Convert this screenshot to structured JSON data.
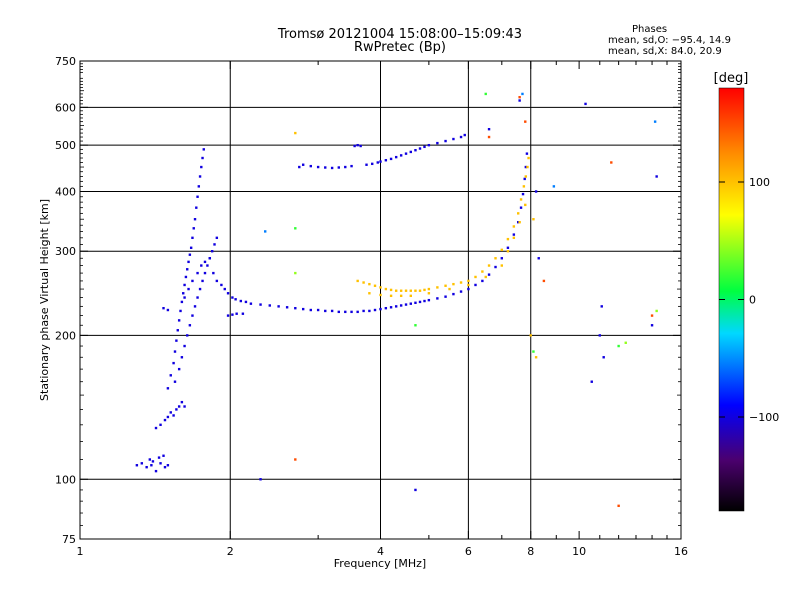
{
  "chart_data": {
    "type": "scatter",
    "title": "Tromsø 20121004 15:08:00–15:09:43",
    "subtitle": "RwPretec (Bp)",
    "stats": {
      "heading": "Phases",
      "line1": "mean, sd,O: −95.4, 14.9",
      "line2": "mean, sd,X:  84.0, 20.9"
    },
    "xlabel": "Frequency [MHz]",
    "ylabel": "Stationary phase Virtual Height [km]",
    "x_scale": "log",
    "y_scale": "log",
    "xlim": [
      1,
      16
    ],
    "ylim": [
      75,
      750
    ],
    "x_major_ticks": [
      1,
      2,
      4,
      6,
      8,
      10,
      16
    ],
    "x_tick_labels": [
      "1",
      "2",
      "4",
      "6",
      "8",
      "10",
      "16"
    ],
    "x_grid": [
      2,
      4,
      6,
      8
    ],
    "y_major_ticks": [
      75,
      100,
      200,
      300,
      400,
      500,
      600,
      750
    ],
    "y_tick_labels": [
      "75",
      "100",
      "200",
      "300",
      "400",
      "500",
      "600",
      "750"
    ],
    "y_grid": [
      100,
      200,
      300,
      400,
      500,
      600
    ],
    "grid": true,
    "colorbar": {
      "label": "[deg]",
      "range": [
        -180,
        180
      ],
      "ticks": [
        100,
        0,
        -100
      ],
      "tick_labels": [
        "100",
        "0",
        "−100"
      ],
      "colormap": "rainbow"
    },
    "series": [
      {
        "phase_deg": -100,
        "points": [
          [
            1.3,
            107
          ],
          [
            1.33,
            108
          ],
          [
            1.36,
            106
          ],
          [
            1.39,
            107
          ],
          [
            1.42,
            104
          ],
          [
            1.45,
            108
          ],
          [
            1.48,
            106
          ],
          [
            1.5,
            107
          ],
          [
            1.38,
            110
          ],
          [
            1.44,
            111
          ],
          [
            1.47,
            112
          ],
          [
            1.4,
            109
          ],
          [
            1.42,
            128
          ],
          [
            1.45,
            130
          ],
          [
            1.48,
            133
          ],
          [
            1.5,
            135
          ],
          [
            1.52,
            138
          ],
          [
            1.54,
            136
          ],
          [
            1.56,
            140
          ],
          [
            1.58,
            142
          ],
          [
            1.6,
            145
          ],
          [
            1.62,
            142
          ],
          [
            1.5,
            155
          ],
          [
            1.52,
            165
          ],
          [
            1.54,
            175
          ],
          [
            1.55,
            185
          ],
          [
            1.56,
            195
          ],
          [
            1.57,
            205
          ],
          [
            1.58,
            215
          ],
          [
            1.59,
            225
          ],
          [
            1.6,
            235
          ],
          [
            1.61,
            245
          ],
          [
            1.62,
            255
          ],
          [
            1.63,
            265
          ],
          [
            1.64,
            275
          ],
          [
            1.65,
            285
          ],
          [
            1.66,
            295
          ],
          [
            1.67,
            305
          ],
          [
            1.68,
            320
          ],
          [
            1.69,
            335
          ],
          [
            1.7,
            350
          ],
          [
            1.71,
            370
          ],
          [
            1.72,
            390
          ],
          [
            1.73,
            410
          ],
          [
            1.74,
            430
          ],
          [
            1.75,
            450
          ],
          [
            1.76,
            470
          ],
          [
            1.77,
            490
          ],
          [
            1.55,
            160
          ],
          [
            1.58,
            170
          ],
          [
            1.6,
            180
          ],
          [
            1.62,
            190
          ],
          [
            1.64,
            200
          ],
          [
            1.66,
            210
          ],
          [
            1.68,
            220
          ],
          [
            1.7,
            230
          ],
          [
            1.72,
            240
          ],
          [
            1.74,
            250
          ],
          [
            1.76,
            260
          ],
          [
            1.78,
            270
          ],
          [
            1.8,
            280
          ],
          [
            1.82,
            290
          ],
          [
            1.84,
            300
          ],
          [
            1.86,
            310
          ],
          [
            1.88,
            320
          ],
          [
            1.62,
            240
          ],
          [
            1.65,
            250
          ],
          [
            1.68,
            260
          ],
          [
            1.72,
            270
          ],
          [
            1.75,
            280
          ],
          [
            1.78,
            285
          ],
          [
            1.82,
            290
          ],
          [
            1.85,
            270
          ],
          [
            1.88,
            260
          ],
          [
            1.92,
            255
          ],
          [
            1.95,
            250
          ],
          [
            1.98,
            245
          ],
          [
            2.02,
            240
          ],
          [
            2.05,
            238
          ],
          [
            2.1,
            236
          ],
          [
            2.15,
            235
          ],
          [
            1.98,
            220
          ],
          [
            2.02,
            221
          ],
          [
            2.06,
            222
          ],
          [
            2.12,
            222
          ],
          [
            2.2,
            233
          ],
          [
            2.3,
            232
          ],
          [
            2.4,
            231
          ],
          [
            2.5,
            230
          ],
          [
            2.6,
            229
          ],
          [
            2.7,
            228
          ],
          [
            2.8,
            227
          ],
          [
            2.9,
            226
          ],
          [
            3.0,
            226
          ],
          [
            3.1,
            225
          ],
          [
            3.2,
            225
          ],
          [
            3.3,
            224
          ],
          [
            3.4,
            224
          ],
          [
            3.5,
            224
          ],
          [
            3.6,
            224
          ],
          [
            3.7,
            225
          ],
          [
            3.8,
            225
          ],
          [
            3.9,
            226
          ],
          [
            4.0,
            227
          ],
          [
            4.1,
            228
          ],
          [
            4.2,
            229
          ],
          [
            4.3,
            230
          ],
          [
            4.4,
            231
          ],
          [
            4.5,
            232
          ],
          [
            4.6,
            233
          ],
          [
            4.7,
            234
          ],
          [
            4.8,
            235
          ],
          [
            4.9,
            236
          ],
          [
            5.0,
            237
          ],
          [
            5.2,
            239
          ],
          [
            5.4,
            241
          ],
          [
            5.6,
            244
          ],
          [
            5.8,
            247
          ],
          [
            6.0,
            250
          ],
          [
            6.2,
            255
          ],
          [
            6.4,
            260
          ],
          [
            6.6,
            268
          ],
          [
            6.8,
            278
          ],
          [
            7.0,
            290
          ],
          [
            7.2,
            305
          ],
          [
            7.4,
            325
          ],
          [
            7.55,
            345
          ],
          [
            7.65,
            370
          ],
          [
            7.72,
            395
          ],
          [
            7.78,
            425
          ],
          [
            7.82,
            450
          ],
          [
            7.86,
            480
          ],
          [
            2.75,
            450
          ],
          [
            2.8,
            455
          ],
          [
            2.9,
            452
          ],
          [
            3.0,
            450
          ],
          [
            3.1,
            449
          ],
          [
            3.2,
            448
          ],
          [
            3.3,
            449
          ],
          [
            3.4,
            450
          ],
          [
            3.5,
            452
          ],
          [
            3.55,
            498
          ],
          [
            3.6,
            500
          ],
          [
            3.65,
            498
          ],
          [
            3.75,
            455
          ],
          [
            3.85,
            457
          ],
          [
            3.95,
            460
          ],
          [
            4.0,
            462
          ],
          [
            4.1,
            465
          ],
          [
            4.2,
            468
          ],
          [
            4.3,
            472
          ],
          [
            4.4,
            476
          ],
          [
            4.5,
            480
          ],
          [
            4.6,
            484
          ],
          [
            4.7,
            488
          ],
          [
            4.8,
            492
          ],
          [
            4.9,
            496
          ],
          [
            5.0,
            500
          ],
          [
            5.2,
            505
          ],
          [
            5.4,
            510
          ],
          [
            5.6,
            515
          ],
          [
            5.8,
            520
          ],
          [
            5.9,
            525
          ],
          [
            1.47,
            228
          ],
          [
            1.5,
            226
          ],
          [
            2.3,
            100
          ],
          [
            4.7,
            95
          ],
          [
            6.6,
            540
          ],
          [
            7.6,
            620
          ],
          [
            8.2,
            400
          ],
          [
            8.3,
            290
          ],
          [
            10.3,
            610
          ],
          [
            11.1,
            230
          ],
          [
            11.0,
            200
          ],
          [
            11.2,
            180
          ],
          [
            14.3,
            430
          ],
          [
            14.0,
            210
          ],
          [
            10.6,
            160
          ]
        ]
      },
      {
        "phase_deg": 100,
        "points": [
          [
            3.6,
            260
          ],
          [
            3.7,
            258
          ],
          [
            3.8,
            256
          ],
          [
            3.9,
            254
          ],
          [
            4.0,
            252
          ],
          [
            4.1,
            250
          ],
          [
            4.2,
            249
          ],
          [
            4.3,
            248
          ],
          [
            4.4,
            248
          ],
          [
            4.5,
            248
          ],
          [
            4.6,
            248
          ],
          [
            4.7,
            248
          ],
          [
            4.8,
            248
          ],
          [
            4.9,
            249
          ],
          [
            5.0,
            250
          ],
          [
            5.2,
            252
          ],
          [
            5.4,
            254
          ],
          [
            5.6,
            256
          ],
          [
            5.8,
            258
          ],
          [
            6.0,
            260
          ],
          [
            6.2,
            265
          ],
          [
            6.4,
            272
          ],
          [
            6.6,
            280
          ],
          [
            6.8,
            290
          ],
          [
            7.0,
            302
          ],
          [
            7.2,
            318
          ],
          [
            7.4,
            338
          ],
          [
            7.55,
            360
          ],
          [
            7.65,
            385
          ],
          [
            7.75,
            410
          ],
          [
            7.82,
            430
          ],
          [
            7.88,
            450
          ],
          [
            7.92,
            470
          ],
          [
            3.8,
            245
          ],
          [
            4.0,
            243
          ],
          [
            4.2,
            242
          ],
          [
            4.4,
            242
          ],
          [
            4.6,
            242
          ],
          [
            5.0,
            245
          ],
          [
            5.5,
            250
          ],
          [
            6.0,
            255
          ],
          [
            6.5,
            265
          ],
          [
            7.0,
            280
          ],
          [
            7.2,
            300
          ],
          [
            7.4,
            320
          ],
          [
            7.6,
            345
          ],
          [
            7.8,
            375
          ],
          [
            2.7,
            530
          ],
          [
            8.1,
            350
          ],
          [
            8.0,
            200
          ],
          [
            8.2,
            180
          ]
        ]
      },
      {
        "phase_deg": 20,
        "points": [
          [
            2.7,
            335
          ],
          [
            4.7,
            210
          ],
          [
            8.1,
            185
          ],
          [
            12.0,
            190
          ],
          [
            6.5,
            640
          ]
        ]
      },
      {
        "phase_deg": 45,
        "points": [
          [
            2.7,
            270
          ],
          [
            14.3,
            225
          ],
          [
            12.4,
            193
          ]
        ]
      },
      {
        "phase_deg": 150,
        "points": [
          [
            2.7,
            110
          ],
          [
            6.6,
            520
          ],
          [
            7.6,
            630
          ],
          [
            7.8,
            560
          ],
          [
            11.6,
            460
          ],
          [
            8.5,
            260
          ],
          [
            12.0,
            88
          ],
          [
            14.0,
            220
          ]
        ]
      },
      {
        "phase_deg": -55,
        "points": [
          [
            7.7,
            640
          ],
          [
            14.2,
            560
          ],
          [
            2.35,
            330
          ],
          [
            8.9,
            410
          ]
        ]
      }
    ]
  }
}
